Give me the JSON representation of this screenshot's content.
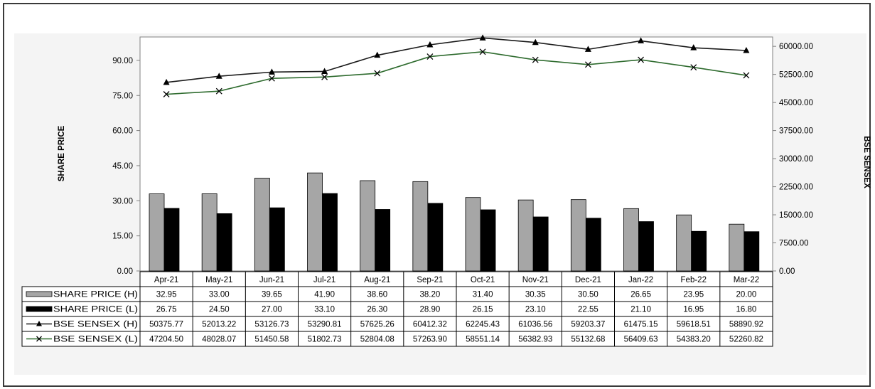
{
  "chart_data": {
    "type": "bar",
    "categories": [
      "Apr-21",
      "May-21",
      "Jun-21",
      "Jul-21",
      "Aug-21",
      "Sep-21",
      "Oct-21",
      "Nov-21",
      "Dec-21",
      "Jan-22",
      "Feb-22",
      "Mar-22"
    ],
    "ylabel": "SHARE PRICE",
    "y2label": "BSE SENSEX",
    "ylim": [
      0,
      100
    ],
    "y2lim": [
      0,
      62500
    ],
    "y_ticks": [
      "0.00",
      "15.00",
      "30.00",
      "45.00",
      "60.00",
      "75.00",
      "90.00"
    ],
    "y2_ticks": [
      "0.00",
      "7500.00",
      "15000.00",
      "22500.00",
      "30000.00",
      "37500.00",
      "45000.00",
      "52500.00",
      "60000.00"
    ],
    "legend": "data-table",
    "series": [
      {
        "name": "SHARE PRICE (H)",
        "kind": "bar",
        "axis": "left",
        "color": "#a6a6a6",
        "values": [
          32.95,
          33.0,
          39.65,
          41.9,
          38.6,
          38.2,
          31.4,
          30.35,
          30.5,
          26.65,
          23.95,
          20.0
        ],
        "labels": [
          "32.95",
          "33.00",
          "39.65",
          "41.90",
          "38.60",
          "38.20",
          "31.40",
          "30.35",
          "30.50",
          "26.65",
          "23.95",
          "20.00"
        ]
      },
      {
        "name": "SHARE PRICE (L)",
        "kind": "bar",
        "axis": "left",
        "color": "#000000",
        "values": [
          26.75,
          24.5,
          27.0,
          33.1,
          26.3,
          28.9,
          26.15,
          23.1,
          22.55,
          21.1,
          16.95,
          16.8
        ],
        "labels": [
          "26.75",
          "24.50",
          "27.00",
          "33.10",
          "26.30",
          "28.90",
          "26.15",
          "23.10",
          "22.55",
          "21.10",
          "16.95",
          "16.80"
        ]
      },
      {
        "name": "BSE SENSEX (H)",
        "kind": "line",
        "marker": "triangle",
        "axis": "right",
        "color": "#1a1a1a",
        "values": [
          50375.77,
          52013.22,
          53126.73,
          53290.81,
          57625.26,
          60412.32,
          62245.43,
          61036.56,
          59203.37,
          61475.15,
          59618.51,
          58890.92
        ],
        "labels": [
          "50375.77",
          "52013.22",
          "53126.73",
          "53290.81",
          "57625.26",
          "60412.32",
          "62245.43",
          "61036.56",
          "59203.37",
          "61475.15",
          "59618.51",
          "58890.92"
        ]
      },
      {
        "name": "BSE SENSEX (L)",
        "kind": "line",
        "marker": "x",
        "axis": "right",
        "color": "#2e6b2e",
        "values": [
          47204.5,
          48028.07,
          51450.58,
          51802.73,
          52804.08,
          57263.9,
          58551.14,
          56382.93,
          55132.68,
          56409.63,
          54383.2,
          52260.82
        ],
        "labels": [
          "47204.50",
          "48028.07",
          "51450.58",
          "51802.73",
          "52804.08",
          "57263.90",
          "58551.14",
          "56382.93",
          "55132.68",
          "56409.63",
          "54383.20",
          "52260.82"
        ]
      }
    ]
  }
}
